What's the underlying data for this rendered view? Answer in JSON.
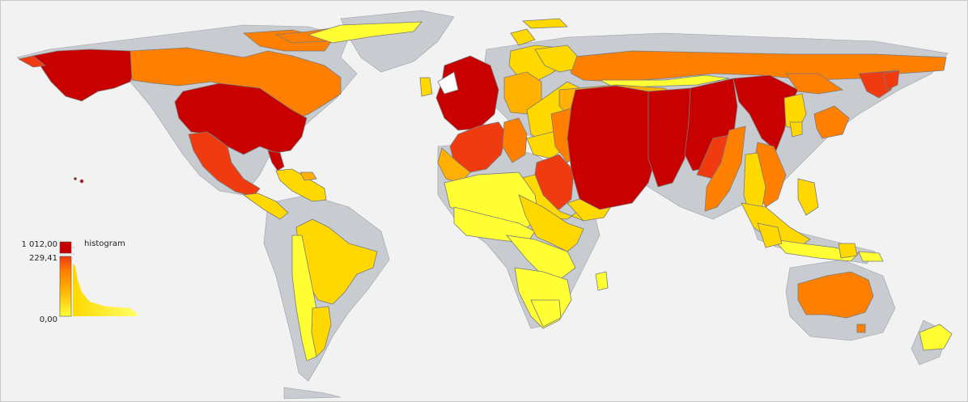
{
  "legend": {
    "title": "histogram",
    "max_label": "1 012,00",
    "break_label": "229,41",
    "min_label": "0,00"
  },
  "colors": {
    "ocean": "#f2f2f2",
    "land_base": "#c8ccd0",
    "border": "#7a7a7a",
    "scale": [
      "#ffff33",
      "#ffd800",
      "#ffb000",
      "#ff7f00",
      "#f03a10",
      "#c80000"
    ]
  },
  "regions": [
    {
      "name": "alaska-region",
      "color_index": 5
    },
    {
      "name": "canada-region",
      "color_index": 3
    },
    {
      "name": "canadian-arctic-region",
      "color_index": 3
    },
    {
      "name": "greenland-region",
      "color_index": 0
    },
    {
      "name": "usa-region",
      "color_index": 5
    },
    {
      "name": "mexico-region",
      "color_index": 4
    },
    {
      "name": "caribbean-region",
      "color_index": 1
    },
    {
      "name": "central-america-region",
      "color_index": 1
    },
    {
      "name": "south-america-region",
      "color_index": 1
    },
    {
      "name": "andes-region",
      "color_index": 0
    },
    {
      "name": "uk-region",
      "color_index": 5
    },
    {
      "name": "france-region",
      "color_index": 4
    },
    {
      "name": "iberia-region",
      "color_index": 2
    },
    {
      "name": "scandinavia-region",
      "color_index": 1
    },
    {
      "name": "germany-region",
      "color_index": 2
    },
    {
      "name": "italy-region",
      "color_index": 3
    },
    {
      "name": "russia-region",
      "color_index": 3
    },
    {
      "name": "central-asia-region",
      "color_index": 2
    },
    {
      "name": "middle-east-region",
      "color_index": 4
    },
    {
      "name": "arabia-region",
      "color_index": 1
    },
    {
      "name": "south-asia-region",
      "color_index": 5
    },
    {
      "name": "east-asia-region",
      "color_index": 5
    },
    {
      "name": "southeast-asia-region",
      "color_index": 1
    },
    {
      "name": "indochina-region",
      "color_index": 3
    },
    {
      "name": "japan-region",
      "color_index": 3
    },
    {
      "name": "north-africa-region",
      "color_index": 0
    },
    {
      "name": "sub-saharan-africa-region",
      "color_index": 0
    },
    {
      "name": "east-africa-region",
      "color_index": 1
    },
    {
      "name": "southern-africa-region",
      "color_index": 0
    },
    {
      "name": "madagascar-region",
      "color_index": 0
    },
    {
      "name": "indonesia-region",
      "color_index": 0
    },
    {
      "name": "australia-region",
      "color_index": 3
    },
    {
      "name": "new-zealand-region",
      "color_index": 0
    }
  ]
}
